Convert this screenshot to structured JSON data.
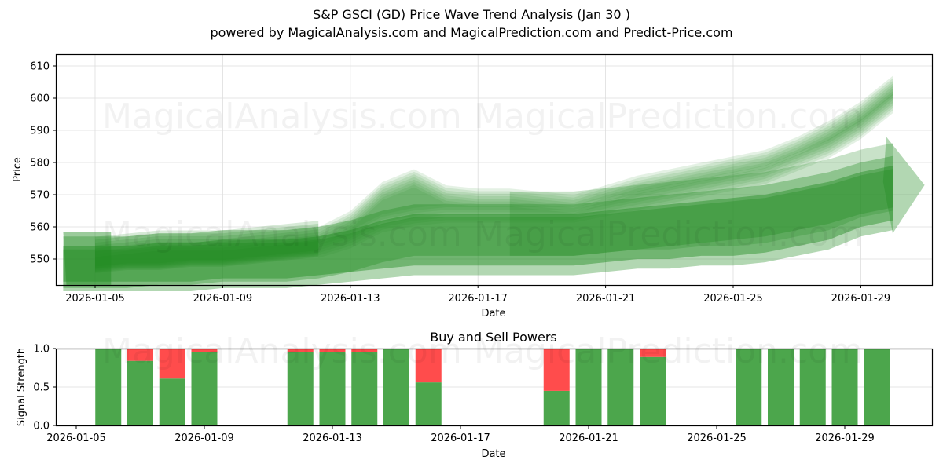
{
  "header": {
    "title": "S&P GSCI (GD) Price Wave Trend Analysis (Jan 30 )",
    "subtitle": "powered by MagicalAnalysis.com and MagicalPrediction.com and Predict-Price.com"
  },
  "watermarks": [
    "MagicalAnalysis.com",
    "MagicalPrediction.com"
  ],
  "colors": {
    "band": "#228b22",
    "buy": "#4ca64c",
    "sell": "#ff4c4c",
    "grid": "#dddddd"
  },
  "chart_data": [
    {
      "type": "area",
      "title": "S&P GSCI (GD) Price Wave Trend Analysis (Jan 30 )",
      "xlabel": "Date",
      "ylabel": "Price",
      "ylim": [
        542,
        614
      ],
      "grid": true,
      "yticks": [
        550,
        560,
        570,
        580,
        590,
        600,
        610
      ],
      "xticks": [
        "2026-01-05",
        "2026-01-09",
        "2026-01-13",
        "2026-01-17",
        "2026-01-21",
        "2026-01-25",
        "2026-01-29"
      ],
      "x": [
        "2026-01-04",
        "2026-01-05",
        "2026-01-06",
        "2026-01-07",
        "2026-01-08",
        "2026-01-09",
        "2026-01-10",
        "2026-01-11",
        "2026-01-12",
        "2026-01-13",
        "2026-01-14",
        "2026-01-15",
        "2026-01-16",
        "2026-01-17",
        "2026-01-18",
        "2026-01-19",
        "2026-01-20",
        "2026-01-21",
        "2026-01-22",
        "2026-01-23",
        "2026-01-24",
        "2026-01-25",
        "2026-01-26",
        "2026-01-27",
        "2026-01-28",
        "2026-01-29",
        "2026-01-30",
        "2026-01-31"
      ],
      "series": [
        {
          "name": "wave-upper-band",
          "values": [
            551,
            551,
            552,
            553,
            553,
            553,
            554,
            555,
            556,
            561,
            570,
            574,
            569,
            568,
            568,
            567,
            566,
            569,
            572,
            574,
            576,
            578,
            580,
            584,
            589,
            595,
            603,
            null
          ]
        },
        {
          "name": "wave-lower-band",
          "values": [
            550,
            550,
            551,
            551,
            552,
            552,
            553,
            554,
            555,
            558,
            563,
            565,
            566,
            566,
            566,
            566,
            566,
            568,
            570,
            572,
            574,
            576,
            578,
            582,
            586,
            592,
            600,
            null
          ]
        },
        {
          "name": "forecast-band-mid",
          "values": [
            549,
            549,
            549,
            550,
            550,
            551,
            551,
            551,
            552,
            554,
            557,
            559,
            559,
            559,
            559,
            559,
            559,
            560,
            561,
            562,
            563,
            564,
            565,
            567,
            569,
            572,
            574,
            null
          ]
        },
        {
          "name": "forecast-band-low",
          "values": [
            546,
            546,
            546,
            546,
            546,
            547,
            547,
            547,
            548,
            549,
            550,
            551,
            551,
            551,
            551,
            551,
            551,
            552,
            553,
            553,
            554,
            554,
            555,
            557,
            559,
            563,
            565,
            null
          ]
        }
      ]
    },
    {
      "type": "bar",
      "title": "Buy and Sell Powers",
      "xlabel": "Date",
      "ylabel": "Signal Strength",
      "ylim": [
        0,
        1
      ],
      "yticks": [
        0.0,
        0.5,
        1.0
      ],
      "xticks": [
        "2026-01-05",
        "2026-01-09",
        "2026-01-13",
        "2026-01-17",
        "2026-01-21",
        "2026-01-25",
        "2026-01-29"
      ],
      "categories": [
        "2026-01-06",
        "2026-01-07",
        "2026-01-08",
        "2026-01-09",
        "2026-01-12",
        "2026-01-13",
        "2026-01-14",
        "2026-01-15",
        "2026-01-16",
        "2026-01-20",
        "2026-01-21",
        "2026-01-22",
        "2026-01-23",
        "2026-01-26",
        "2026-01-27",
        "2026-01-28",
        "2026-01-29",
        "2026-01-30"
      ],
      "series": [
        {
          "name": "Buy",
          "color": "#4ca64c",
          "values": [
            1.0,
            0.84,
            0.61,
            0.95,
            0.95,
            0.95,
            0.95,
            1.0,
            0.56,
            0.45,
            1.0,
            1.0,
            0.89,
            1.0,
            1.0,
            1.0,
            1.0,
            1.0
          ]
        },
        {
          "name": "Sell",
          "color": "#ff4c4c",
          "values": [
            0.0,
            0.16,
            0.39,
            0.05,
            0.05,
            0.05,
            0.05,
            0.0,
            0.44,
            0.55,
            0.0,
            0.0,
            0.11,
            0.0,
            0.0,
            0.0,
            0.0,
            0.0
          ]
        }
      ]
    }
  ]
}
